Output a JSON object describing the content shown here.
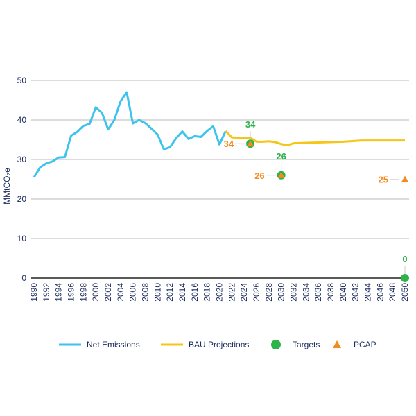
{
  "chart_data": {
    "type": "line",
    "ylabel": "MMtCO₂e",
    "ylim": [
      0,
      50
    ],
    "yticks": [
      0,
      10,
      20,
      30,
      40,
      50
    ],
    "xlim": [
      1990,
      2050
    ],
    "xticks": [
      1990,
      1992,
      1994,
      1996,
      1998,
      2000,
      2002,
      2004,
      2006,
      2008,
      2010,
      2012,
      2014,
      2016,
      2018,
      2020,
      2022,
      2024,
      2026,
      2028,
      2030,
      2032,
      2034,
      2036,
      2038,
      2040,
      2042,
      2044,
      2046,
      2048,
      2050
    ],
    "grid": true,
    "legend_position": "bottom",
    "series": [
      {
        "name": "Net Emissions",
        "kind": "line",
        "color": "#3ec3ef",
        "x": [
          1990,
          1991,
          1992,
          1993,
          1994,
          1995,
          1996,
          1997,
          1998,
          1999,
          2000,
          2001,
          2002,
          2003,
          2004,
          2005,
          2006,
          2007,
          2008,
          2009,
          2010,
          2011,
          2012,
          2013,
          2014,
          2015,
          2016,
          2017,
          2018,
          2019,
          2020,
          2021
        ],
        "y": [
          25.5,
          28,
          29,
          29.5,
          30.5,
          30.6,
          36,
          37,
          38.5,
          39,
          43.2,
          41.8,
          37.6,
          40,
          44.7,
          47,
          39.1,
          40,
          39.2,
          37.8,
          36.3,
          32.6,
          33.1,
          35.4,
          37.1,
          35.2,
          35.9,
          35.7,
          37.2,
          38.4,
          33.8,
          37.2
        ]
      },
      {
        "name": "BAU Projections",
        "kind": "line",
        "color": "#f5c518",
        "x": [
          2021,
          2022,
          2023,
          2024,
          2025,
          2026,
          2027,
          2028,
          2029,
          2030,
          2031,
          2032,
          2036,
          2040,
          2043,
          2050
        ],
        "y": [
          37.2,
          35.6,
          35.5,
          35.4,
          35.5,
          34.5,
          34.5,
          34.6,
          34.4,
          33.9,
          33.6,
          34.1,
          34.3,
          34.5,
          34.8,
          34.8
        ]
      },
      {
        "name": "Targets",
        "kind": "marker",
        "marker": "circle",
        "color": "#2db34a",
        "x": [
          2025,
          2030,
          2050
        ],
        "y": [
          34,
          26,
          0
        ],
        "labels": [
          "34",
          "26",
          "0"
        ]
      },
      {
        "name": "PCAP",
        "kind": "marker",
        "marker": "triangle",
        "color": "#f48b1f",
        "x": [
          2025,
          2030,
          2050
        ],
        "y": [
          34,
          26,
          25
        ],
        "labels": [
          "34",
          "26",
          "25"
        ]
      }
    ]
  }
}
